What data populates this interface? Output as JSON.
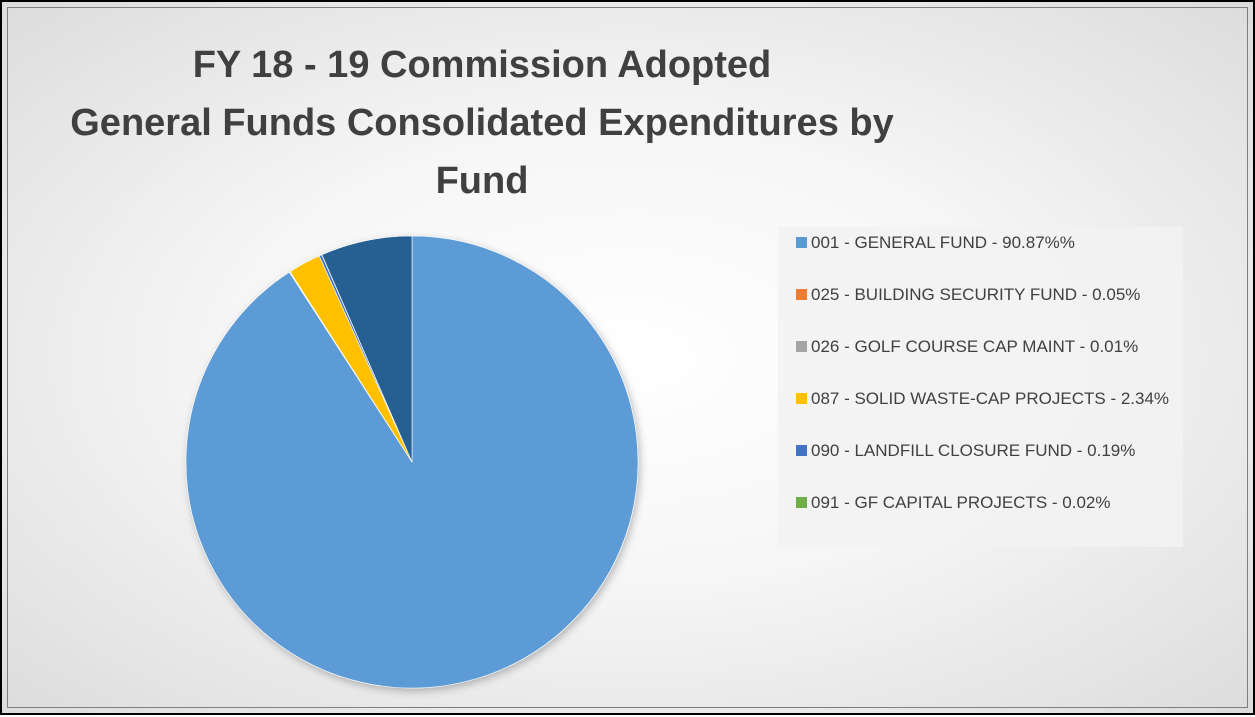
{
  "chart_data": {
    "type": "pie",
    "title_lines": [
      "FY 18 - 19 Commission Adopted",
      "General Funds Consolidated Expenditures by",
      "Fund"
    ],
    "start_angle_deg": 0,
    "direction": "clockwise",
    "slices": [
      {
        "label": "001 - GENERAL FUND - 90.87%%",
        "value": 90.87,
        "color": "#5B9BD5"
      },
      {
        "label": "025 - BUILDING SECURITY FUND - 0.05%",
        "value": 0.05,
        "color": "#ED7D31"
      },
      {
        "label": "026 - GOLF COURSE CAP MAINT - 0.01%",
        "value": 0.01,
        "color": "#A5A5A5"
      },
      {
        "label": "087 - SOLID WASTE-CAP PROJECTS - 2.34%",
        "value": 2.34,
        "color": "#FFC000"
      },
      {
        "label": "090 - LANDFILL CLOSURE FUND - 0.19%",
        "value": 0.19,
        "color": "#4472C4"
      },
      {
        "label": "091 - GF CAPITAL PROJECTS - 0.02%",
        "value": 0.02,
        "color": "#70AD47"
      },
      {
        "label": "",
        "value": 6.52,
        "color": "#255E91"
      }
    ],
    "legend_position": "right"
  }
}
